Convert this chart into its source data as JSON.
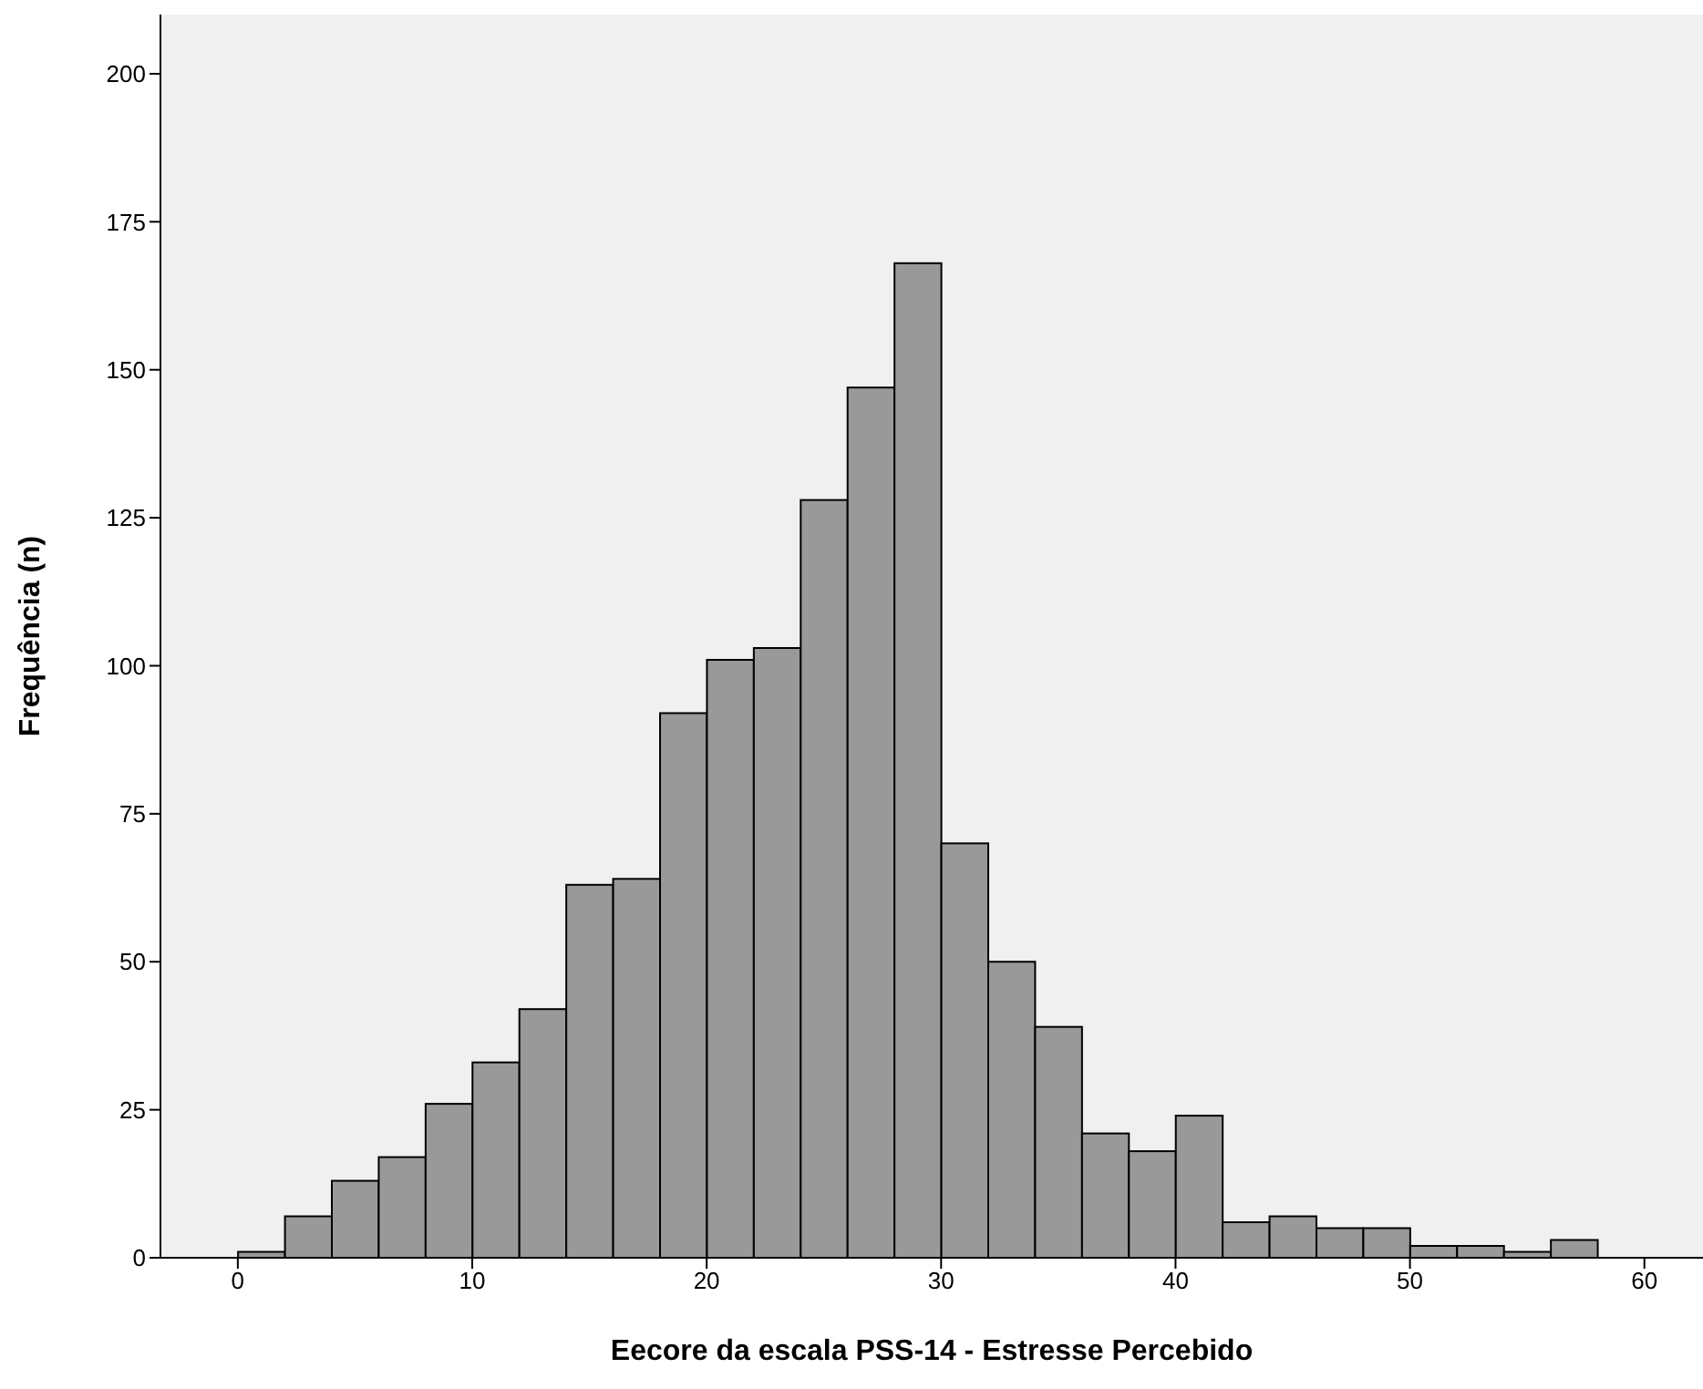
{
  "chart_data": {
    "type": "histogram",
    "xlabel": "Eecore da escala PSS-14 - Estresse Percebido",
    "ylabel": "Frequência (n)",
    "bins": [
      0,
      2,
      4,
      6,
      8,
      10,
      12,
      14,
      16,
      18,
      20,
      22,
      24,
      26,
      28,
      30,
      32,
      34,
      36,
      38,
      40,
      42,
      44,
      46,
      48,
      50,
      52,
      54,
      56,
      58
    ],
    "values": [
      1,
      7,
      13,
      17,
      26,
      33,
      42,
      63,
      64,
      92,
      101,
      103,
      128,
      147,
      168,
      70,
      50,
      39,
      21,
      18,
      24,
      6,
      7,
      5,
      5,
      2,
      2,
      1,
      3
    ],
    "color": "#999999",
    "xlim": [
      -3.3,
      62.5
    ],
    "xticks": [
      0,
      10,
      20,
      30,
      40,
      50,
      60
    ],
    "ylim": [
      0,
      210
    ],
    "yticks": [
      0,
      25,
      50,
      75,
      100,
      125,
      150,
      175,
      200
    ],
    "grid": false
  }
}
